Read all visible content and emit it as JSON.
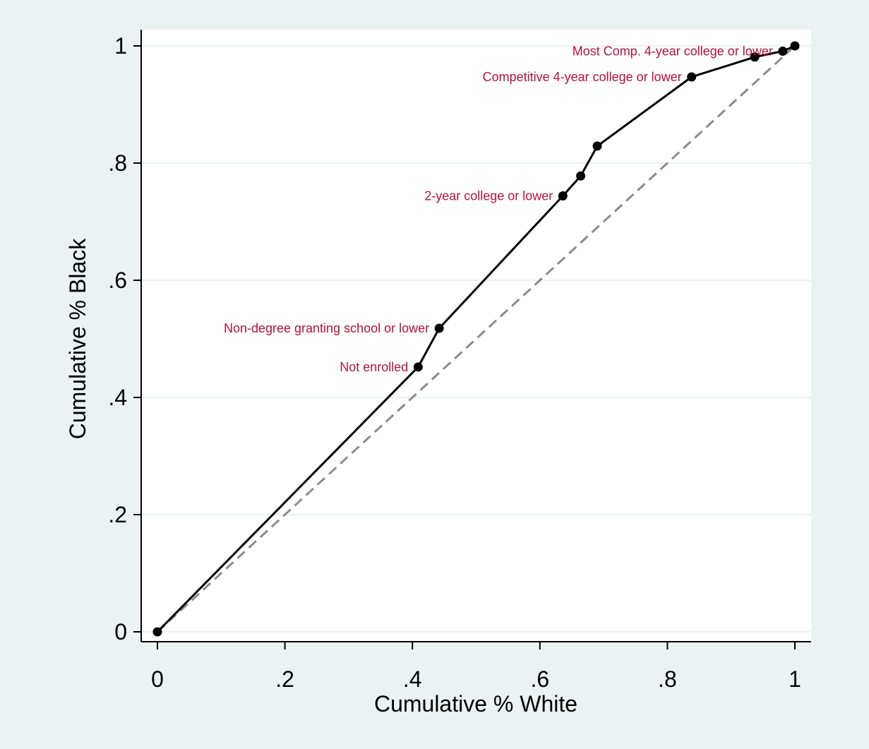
{
  "chart_data": {
    "type": "line",
    "xlabel": "Cumulative % White",
    "ylabel": "Cumulative % Black",
    "xlim": [
      0,
      1
    ],
    "ylim": [
      0,
      1
    ],
    "x_ticks": [
      0,
      0.2,
      0.4,
      0.6,
      0.8,
      1
    ],
    "x_tick_labels": [
      "0",
      ".2",
      ".4",
      ".6",
      ".8",
      "1"
    ],
    "y_ticks": [
      0,
      0.2,
      0.4,
      0.6,
      0.8,
      1
    ],
    "y_tick_labels": [
      "0",
      ".2",
      ".4",
      ".6",
      ".8",
      "1"
    ],
    "grid": "horizontal",
    "legend": "none",
    "colors": {
      "background": "#eaf2f3",
      "plot_area": "#ffffff",
      "gridline": "#eaf2f3",
      "series_line": "#000000",
      "reference_line": "#8c8c8c",
      "point_label": "#b5123b"
    },
    "series": [
      {
        "style": "solid-with-markers",
        "x": [
          0,
          0.409,
          0.442,
          0.636,
          0.664,
          0.69,
          0.838,
          0.937,
          0.981,
          1
        ],
        "y": [
          0,
          0.452,
          0.518,
          0.744,
          0.778,
          0.829,
          0.947,
          0.981,
          0.991,
          1
        ]
      },
      {
        "style": "dashed",
        "x": [
          0,
          1
        ],
        "y": [
          0,
          1
        ]
      }
    ],
    "annotations": [
      {
        "text": "Not enrolled",
        "x": 0.409,
        "y": 0.452
      },
      {
        "text": "Non-degree granting school or lower",
        "x": 0.442,
        "y": 0.518
      },
      {
        "text": "2-year college or lower",
        "x": 0.636,
        "y": 0.744
      },
      {
        "text": "Competitive 4-year college or lower",
        "x": 0.838,
        "y": 0.947
      },
      {
        "text": "Most Comp. 4-year college or lower",
        "x": 0.981,
        "y": 0.991
      }
    ]
  }
}
